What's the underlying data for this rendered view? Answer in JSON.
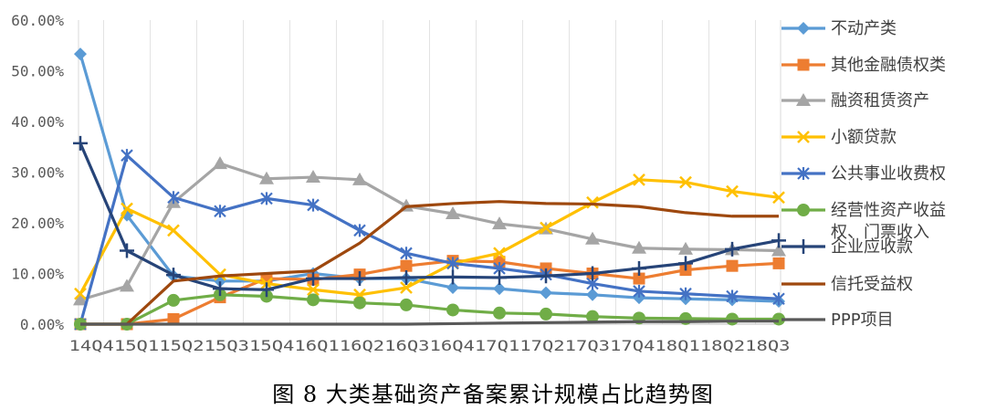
{
  "caption": "图 8  大类基础资产备案累计规模占比趋势图",
  "chart_data": {
    "type": "line",
    "title": "",
    "xlabel": "",
    "ylabel": "",
    "ylim": [
      0,
      60
    ],
    "y_ticks": [
      "0.00%",
      "10.00%",
      "20.00%",
      "30.00%",
      "40.00%",
      "50.00%",
      "60.00%"
    ],
    "categories": [
      "14Q4",
      "15Q1",
      "15Q2",
      "15Q3",
      "15Q4",
      "16Q1",
      "16Q2",
      "16Q3",
      "16Q4",
      "17Q1",
      "17Q2",
      "17Q3",
      "17Q4",
      "18Q1",
      "18Q2",
      "18Q3"
    ],
    "x_axis_text": "14Q415Q115Q215Q315Q416Q116Q216Q316Q417Q117Q217Q317Q418Q118Q218Q3",
    "grid": "vertical",
    "legend_position": "right",
    "series": [
      {
        "name": "不动产类",
        "color": "#5B9BD5",
        "marker": "diamond",
        "values": [
          53.3,
          21.5,
          9.5,
          8.5,
          8.5,
          10.0,
          9.0,
          9.0,
          7.2,
          7.0,
          6.2,
          5.8,
          5.2,
          5.0,
          4.8,
          4.5
        ]
      },
      {
        "name": "其他金融债权类",
        "color": "#ED7D31",
        "marker": "square",
        "values": [
          0.0,
          0.0,
          1.0,
          5.3,
          9.0,
          8.8,
          9.8,
          11.5,
          12.5,
          12.3,
          11.0,
          10.0,
          9.0,
          10.7,
          11.5,
          12.0
        ]
      },
      {
        "name": "融资租赁资产",
        "color": "#A5A5A5",
        "marker": "triangle",
        "values": [
          4.8,
          7.5,
          24.0,
          31.7,
          28.7,
          29.0,
          28.5,
          23.3,
          21.8,
          19.8,
          18.8,
          16.8,
          15.0,
          14.8,
          14.7,
          14.5
        ]
      },
      {
        "name": "小额贷款",
        "color": "#FFC000",
        "marker": "x",
        "values": [
          6.0,
          22.8,
          18.5,
          9.8,
          8.0,
          6.8,
          5.8,
          7.2,
          12.0,
          14.0,
          19.0,
          24.0,
          28.5,
          28.0,
          26.2,
          25.0
        ]
      },
      {
        "name": "公共事业收费权",
        "color": "#4472C4",
        "marker": "star",
        "values": [
          0.0,
          33.3,
          25.0,
          22.3,
          24.8,
          23.5,
          18.5,
          14.0,
          12.0,
          11.0,
          9.8,
          8.0,
          6.5,
          6.0,
          5.5,
          5.0
        ]
      },
      {
        "name": "经营性资产收益权、门票收入",
        "color": "#70AD47",
        "marker": "circle",
        "values": [
          0.0,
          0.0,
          4.7,
          5.8,
          5.5,
          4.8,
          4.2,
          3.8,
          2.8,
          2.2,
          2.0,
          1.5,
          1.2,
          1.1,
          1.0,
          1.0
        ]
      },
      {
        "name": "企业应收款",
        "color": "#264478",
        "marker": "plus",
        "values": [
          35.7,
          14.5,
          9.7,
          7.0,
          6.8,
          9.0,
          9.0,
          9.2,
          9.3,
          9.2,
          9.5,
          10.0,
          11.0,
          12.0,
          14.8,
          16.5
        ]
      },
      {
        "name": "信托受益权",
        "color": "#9E480E",
        "marker": "none",
        "values": [
          0.0,
          0.0,
          8.5,
          9.5,
          10.0,
          10.5,
          16.0,
          23.2,
          23.8,
          24.2,
          23.8,
          23.7,
          23.2,
          22.0,
          21.3,
          21.3
        ]
      },
      {
        "name": "PPP项目",
        "color": "#595959",
        "marker": "none",
        "values": [
          0.0,
          0.0,
          0.0,
          0.0,
          0.0,
          0.0,
          0.0,
          0.0,
          0.1,
          0.2,
          0.3,
          0.4,
          0.5,
          0.5,
          0.6,
          0.6
        ]
      }
    ],
    "legend_display": [
      "不动产类",
      "其他金融债权类",
      "融资租赁资产",
      "小额贷款",
      "公共事业收费权",
      "经营性资产收益",
      "权、门票收入",
      "企业应收款",
      "信托受益权",
      "PPP项目"
    ]
  }
}
